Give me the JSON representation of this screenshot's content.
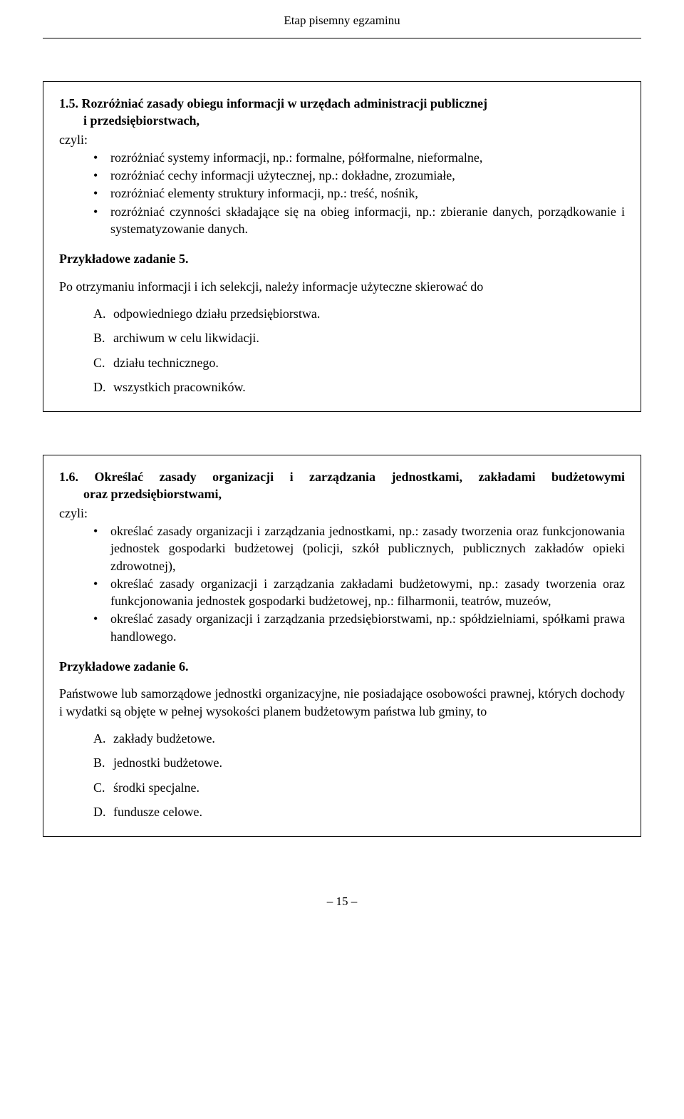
{
  "header": "Etap pisemny egzaminu",
  "box1": {
    "title_line1_num": "1.5.",
    "title_line1_rest": " Rozróżniać zasady obiegu informacji w urzędach administracji publicznej",
    "title_line2": "i przedsiębiorstwach,",
    "czyli": "czyli:",
    "bullets": [
      "rozróżniać systemy informacji, np.: formalne, półformalne, nieformalne,",
      "rozróżniać cechy informacji użytecznej, np.: dokładne, zrozumiałe,",
      "rozróżniać elementy struktury informacji, np.: treść, nośnik,",
      "rozróżniać czynności składające się na obieg informacji, np.: zbieranie danych, porządkowanie i systematyzowanie danych."
    ],
    "task_title": "Przykładowe zadanie 5.",
    "task_body": "Po otrzymaniu informacji i ich selekcji, należy informacje użyteczne skierować do",
    "options": [
      {
        "label": "A.",
        "text": "odpowiedniego działu przedsiębiorstwa."
      },
      {
        "label": "B.",
        "text": "archiwum w celu likwidacji."
      },
      {
        "label": "C.",
        "text": "działu technicznego."
      },
      {
        "label": "D.",
        "text": "wszystkich pracowników."
      }
    ]
  },
  "box2": {
    "title_line1_num": "1.6.",
    "title_line1_rest": " Określać zasady organizacji i zarządzania jednostkami, zakładami budżetowymi",
    "title_line2": "oraz przedsiębiorstwami,",
    "czyli": "czyli:",
    "bullets": [
      "określać zasady organizacji i zarządzania jednostkami, np.: zasady tworzenia oraz funkcjonowania jednostek gospodarki budżetowej (policji, szkół publicznych, publicznych zakładów opieki zdrowotnej),",
      "określać zasady organizacji i zarządzania zakładami budżetowymi, np.: zasady tworzenia oraz funkcjonowania jednostek gospodarki budżetowej, np.: filharmonii, teatrów, muzeów,",
      "określać zasady organizacji i zarządzania przedsiębiorstwami, np.: spółdzielniami, spółkami prawa handlowego."
    ],
    "task_title": "Przykładowe zadanie 6.",
    "task_body": "Państwowe lub samorządowe jednostki organizacyjne, nie posiadające osobowości prawnej, których dochody i wydatki są objęte w pełnej wysokości planem budżetowym państwa lub gminy, to",
    "options": [
      {
        "label": "A.",
        "text": "zakłady budżetowe."
      },
      {
        "label": "B.",
        "text": "jednostki budżetowe."
      },
      {
        "label": "C.",
        "text": "środki specjalne."
      },
      {
        "label": "D.",
        "text": "fundusze celowe."
      }
    ]
  },
  "pagenum": "– 15 –"
}
